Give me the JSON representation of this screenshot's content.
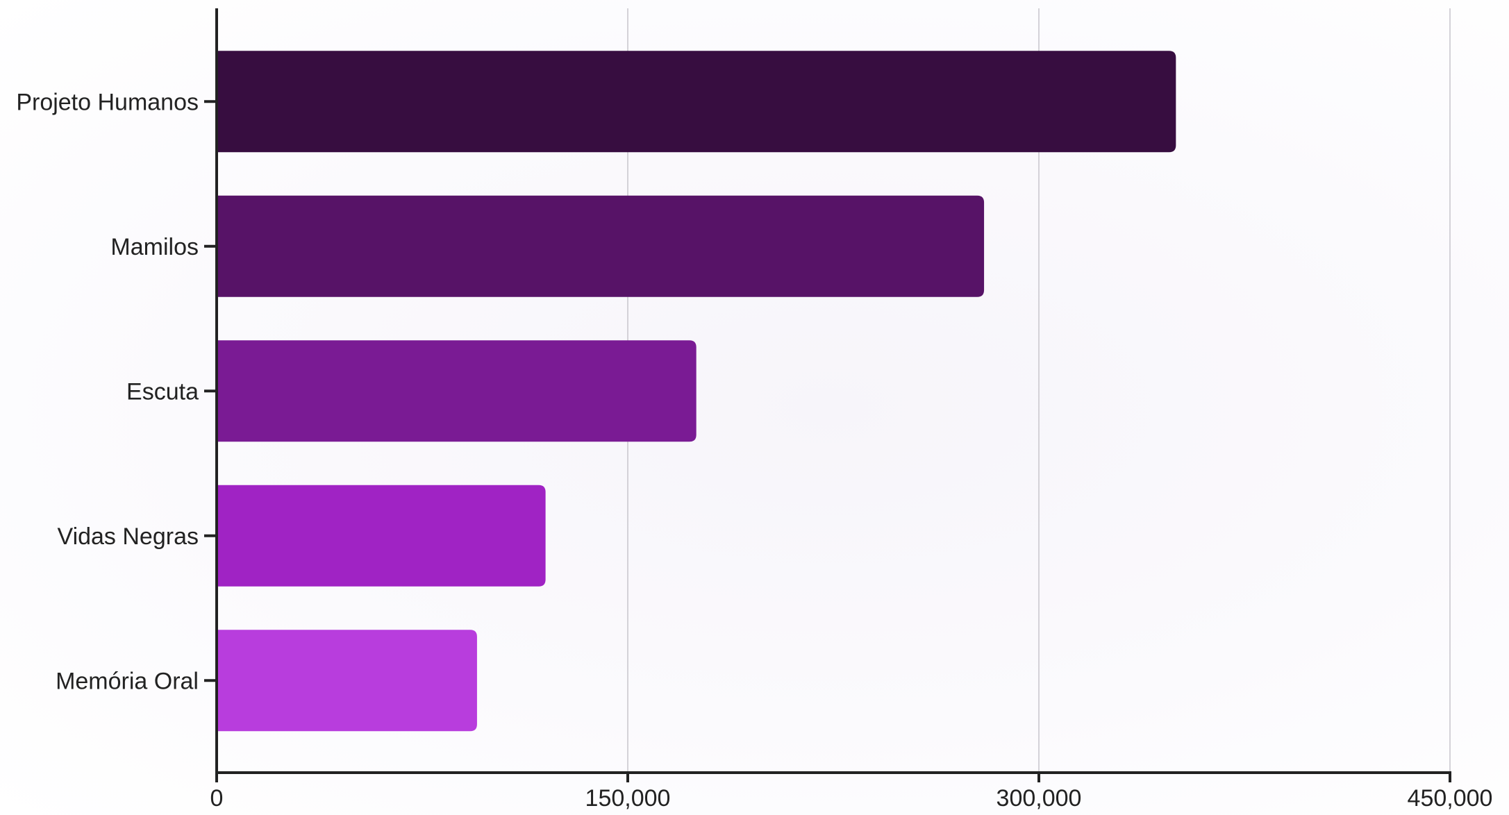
{
  "chart_data": {
    "type": "bar",
    "orientation": "horizontal",
    "title": "",
    "xlabel": "",
    "ylabel": "",
    "categories": [
      "Projeto Humanos",
      "Mamilos",
      "Escuta",
      "Vidas Negras",
      "Memória Oral"
    ],
    "values": [
      350000,
      280000,
      175000,
      120000,
      95000
    ],
    "xlim": [
      0,
      450000
    ],
    "x_ticks": [
      0,
      150000,
      300000,
      450000
    ],
    "x_tick_labels": [
      "0",
      "150,000",
      "300,000",
      "450,000"
    ],
    "grid": "vertical",
    "legend": "none",
    "colors": [
      "#370d40",
      "#571367",
      "#7a1b94",
      "#a023c4",
      "#b83ddd"
    ],
    "axis_color": "#222222",
    "grid_color": "#d4d2d8"
  }
}
